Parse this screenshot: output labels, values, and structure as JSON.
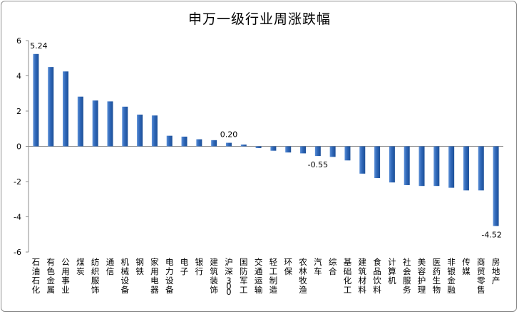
{
  "chart_data": {
    "type": "bar",
    "title": "申万一级行业周涨跌幅",
    "xlabel": "",
    "ylabel": "",
    "ylim": [
      -6,
      6
    ],
    "yticks": [
      6,
      4,
      2,
      0,
      -2,
      -4,
      -6
    ],
    "grid": false,
    "legend": "none",
    "colors": {
      "bar_top": "#5b8fd6",
      "bar_mid": "#2f67b8",
      "bar_bottom": "#1c4f97",
      "axis": "#8c8c8c"
    },
    "categories": [
      "石油石化",
      "有色金属",
      "公用事业",
      "煤炭",
      "纺织服饰",
      "通信",
      "机械设备",
      "钢铁",
      "家用电器",
      "电力设备",
      "电子",
      "银行",
      "建筑装饰",
      "沪深300",
      "国防军工",
      "交通运输",
      "轻工制造",
      "环保",
      "农林牧渔",
      "汽车",
      "综合",
      "基础化工",
      "建筑材料",
      "食品饮料",
      "计算机",
      "社会服务",
      "美容护理",
      "医药生物",
      "非银金融",
      "传媒",
      "商贸零售",
      "房地产"
    ],
    "values": [
      5.24,
      4.5,
      4.25,
      2.82,
      2.6,
      2.55,
      2.25,
      1.8,
      1.75,
      0.6,
      0.55,
      0.4,
      0.35,
      0.2,
      0.1,
      -0.1,
      -0.25,
      -0.35,
      -0.4,
      -0.55,
      -0.6,
      -0.8,
      -1.55,
      -1.8,
      -2.05,
      -2.2,
      -2.25,
      -2.25,
      -2.35,
      -2.5,
      -2.5,
      -4.52
    ],
    "data_labels": [
      {
        "index": 0,
        "text": "5.24"
      },
      {
        "index": 13,
        "text": "0.20"
      },
      {
        "index": 19,
        "text": "-0.55"
      },
      {
        "index": 31,
        "text": "-4.52"
      }
    ]
  }
}
